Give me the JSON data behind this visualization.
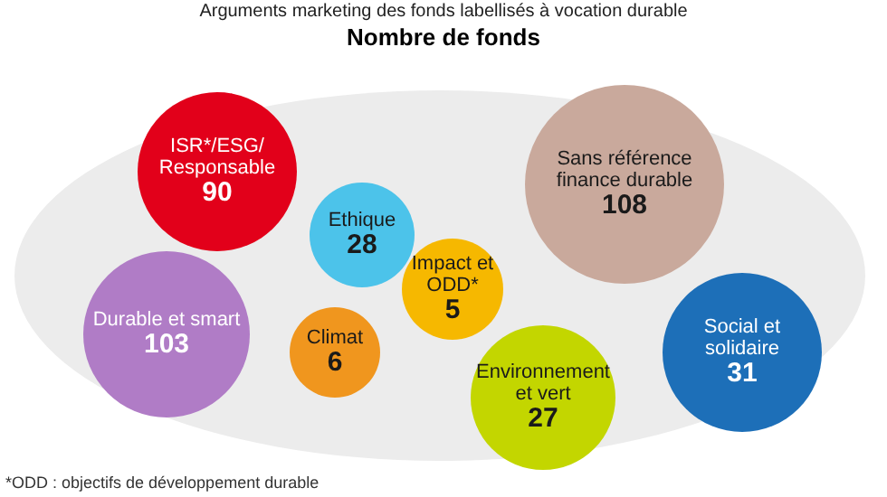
{
  "chart_data": {
    "type": "other",
    "title": "Arguments marketing des fonds labellisés à vocation durable",
    "subtitle": "Nombre de fonds",
    "categories": [
      "ISR*/ESG/ Responsable",
      "Ethique",
      "Sans référence finance durable",
      "Durable et smart",
      "Climat",
      "Impact et ODD*",
      "Social et solidaire",
      "Environnement et vert"
    ],
    "values": [
      90,
      28,
      108,
      103,
      6,
      5,
      31,
      27
    ],
    "colors": [
      "#e2001a",
      "#4cc3ea",
      "#c9a99c",
      "#b07cc6",
      "#f0961e",
      "#f6b800",
      "#1d6fb8",
      "#c3d600"
    ],
    "data_labels": true,
    "annotations": [
      "*ODD : objectifs de développement durable"
    ]
  }
}
